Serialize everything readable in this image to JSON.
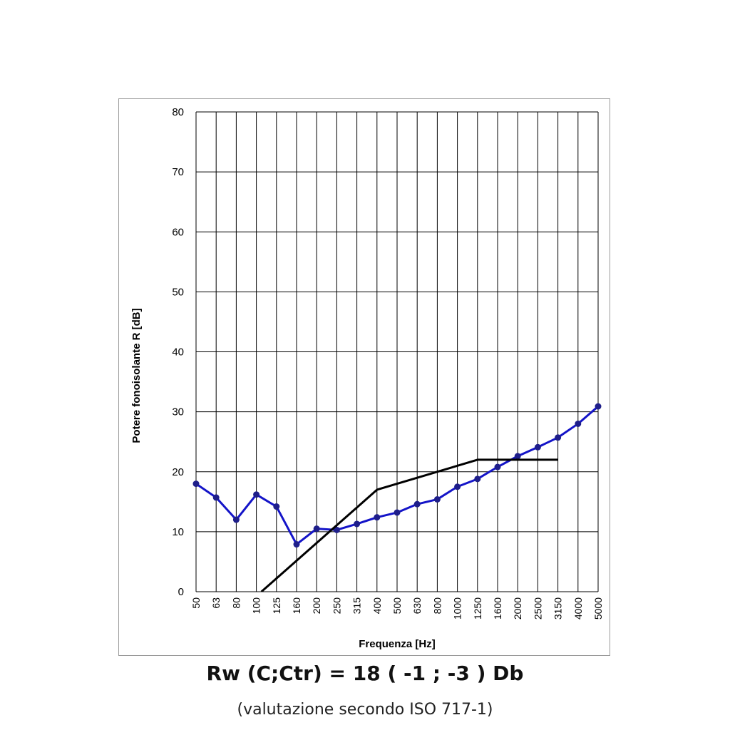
{
  "chart_data": {
    "type": "line",
    "title": "",
    "xlabel": "Frequenza [Hz]",
    "ylabel": "Potere fonoisolante R [dB]",
    "categories": [
      "50",
      "63",
      "80",
      "100",
      "125",
      "160",
      "200",
      "250",
      "315",
      "400",
      "500",
      "630",
      "800",
      "1000",
      "1250",
      "1600",
      "2000",
      "2500",
      "3150",
      "4000",
      "5000"
    ],
    "yticks": [
      0,
      10,
      20,
      30,
      40,
      50,
      60,
      70,
      80
    ],
    "ylim": [
      0,
      80
    ],
    "grid": true,
    "legend": "none",
    "series": [
      {
        "color": "#1414c8",
        "markers": true,
        "values": [
          18.0,
          15.7,
          12.0,
          16.2,
          14.2,
          7.9,
          10.5,
          10.3,
          11.3,
          12.4,
          13.2,
          14.6,
          15.4,
          17.5,
          18.8,
          20.8,
          22.6,
          24.1,
          25.7,
          28.0,
          30.9
        ]
      },
      {
        "color": "#000000",
        "markers": false,
        "points": [
          [
            3.25,
            0
          ],
          [
            9,
            17
          ],
          [
            14,
            22
          ],
          [
            18,
            22
          ]
        ]
      }
    ]
  },
  "formula": "Rw (C;Ctr) = 18 ( -1 ; -3 ) Db",
  "caption": "(valutazione secondo ISO 717-1)"
}
